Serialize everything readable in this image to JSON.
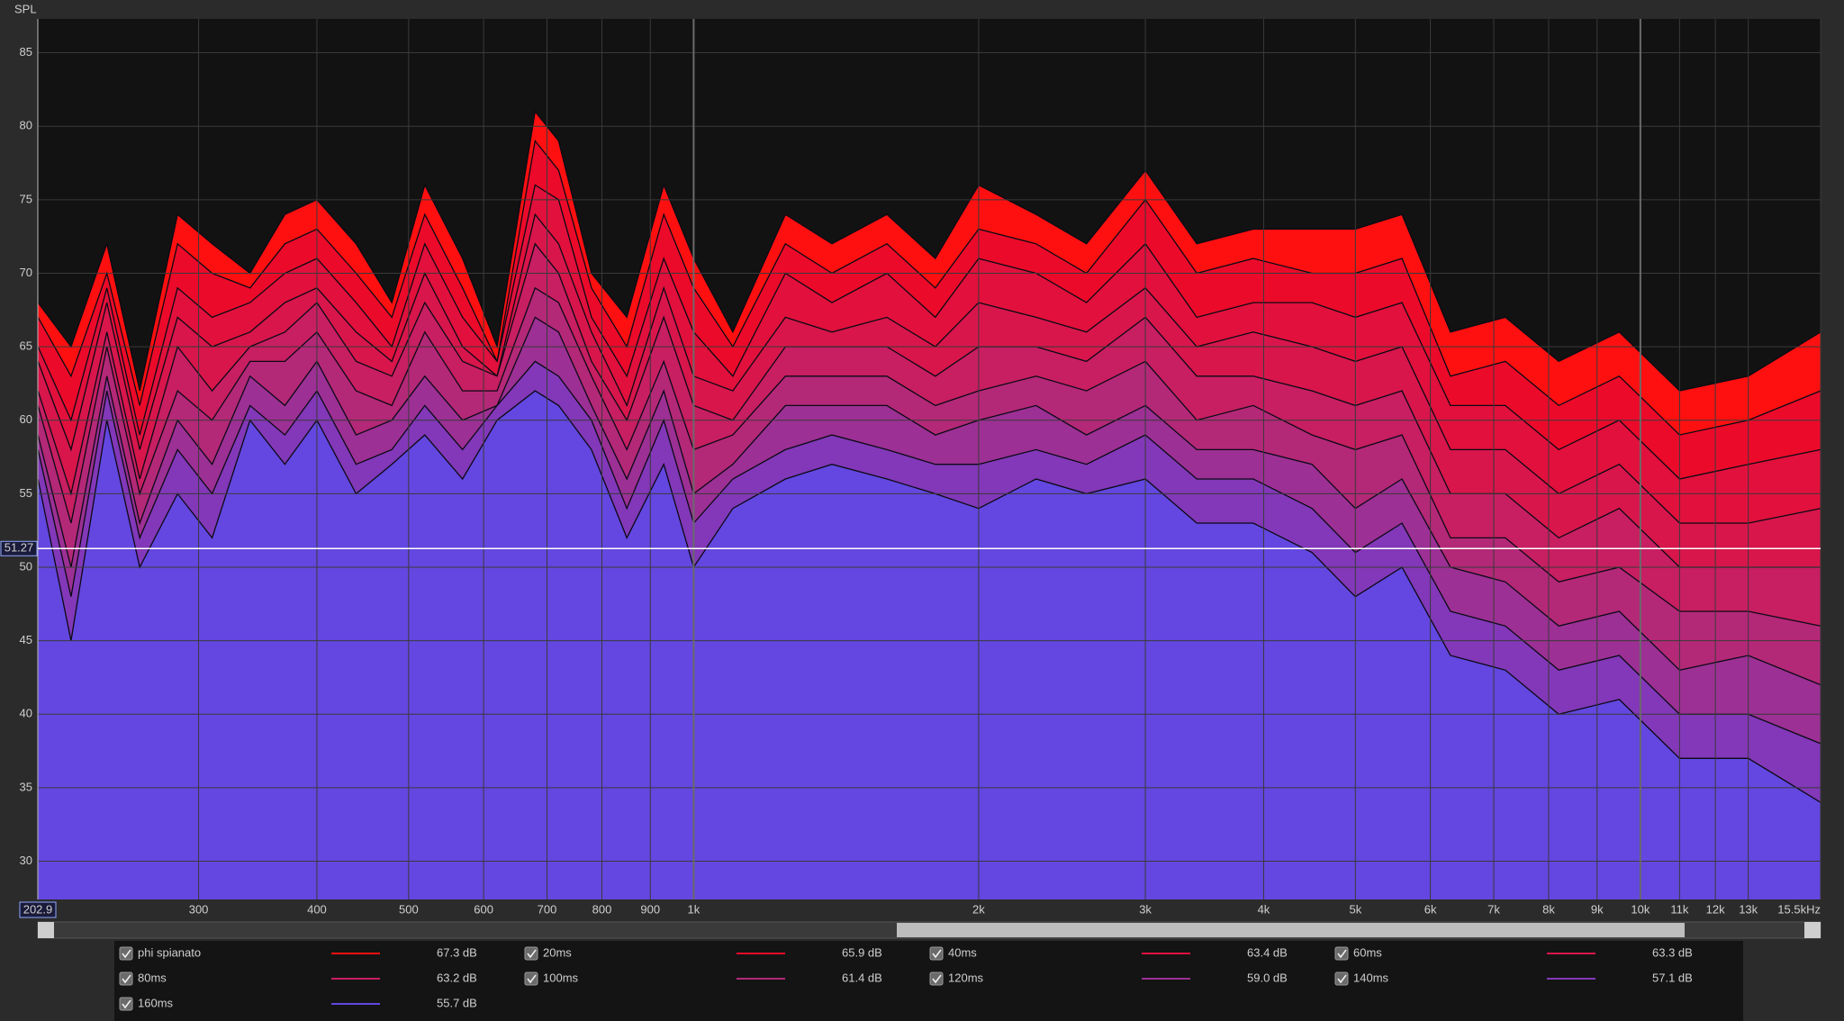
{
  "chart_data": {
    "type": "waterfall",
    "y_label": "SPL",
    "x": [
      203,
      220,
      240,
      260,
      285,
      310,
      340,
      370,
      400,
      440,
      480,
      520,
      570,
      620,
      680,
      720,
      780,
      850,
      930,
      1000,
      1100,
      1250,
      1400,
      1600,
      1800,
      2000,
      2300,
      2600,
      3000,
      3400,
      3900,
      4500,
      5000,
      5600,
      6300,
      7200,
      8200,
      9500,
      11000,
      13000,
      15500
    ],
    "xlim": [
      202.9,
      15500
    ],
    "ylim": [
      27.4,
      87.3
    ],
    "log_x": true,
    "grid": true,
    "xticks": [
      300,
      400,
      500,
      600,
      700,
      800,
      900,
      {
        "value": 1000,
        "label": "1k"
      },
      {
        "value": 2000,
        "label": "2k"
      },
      {
        "value": 3000,
        "label": "3k"
      },
      {
        "value": 4000,
        "label": "4k"
      },
      {
        "value": 5000,
        "label": "5k"
      },
      {
        "value": 6000,
        "label": "6k"
      },
      {
        "value": 7000,
        "label": "7k"
      },
      {
        "value": 8000,
        "label": "8k"
      },
      {
        "value": 9000,
        "label": "9k"
      },
      {
        "value": 10000,
        "label": "10k"
      },
      {
        "value": 15500,
        "label": "15.5kHz"
      }
    ],
    "xticks_minor": [
      {
        "value": 11000,
        "label": "11k"
      },
      {
        "value": 12000,
        "label": "12k"
      },
      {
        "value": 13000,
        "label": "13k"
      }
    ],
    "yticks": [
      30,
      35,
      40,
      45,
      50,
      55,
      60,
      65,
      70,
      75,
      80,
      85
    ],
    "cursor": {
      "x": 202.9,
      "y": 51.27
    },
    "series": [
      {
        "name": "phi spianato",
        "color": "#ff1010",
        "level": "67.3 dB",
        "values": [
          68,
          65,
          72,
          62,
          74,
          72,
          70,
          74,
          75,
          72,
          68,
          76,
          71,
          65,
          81,
          79,
          70,
          67,
          76,
          71,
          66,
          74,
          72,
          74,
          71,
          76,
          74,
          72,
          77,
          72,
          73,
          73,
          73,
          74,
          66,
          67,
          64,
          66,
          62,
          63,
          66
        ]
      },
      {
        "name": "20ms",
        "color": "#ec0a2a",
        "level": "65.9 dB",
        "values": [
          67,
          63,
          70,
          61,
          72,
          70,
          69,
          72,
          73,
          70,
          67,
          74,
          69,
          64,
          79,
          77,
          69,
          65,
          74,
          69,
          65,
          72,
          70,
          72,
          69,
          73,
          72,
          70,
          75,
          70,
          71,
          70,
          70,
          71,
          63,
          64,
          61,
          63,
          59,
          60,
          62
        ]
      },
      {
        "name": "40ms",
        "color": "#e2103c",
        "level": "63.4 dB",
        "values": [
          65,
          60,
          69,
          59,
          69,
          67,
          68,
          70,
          71,
          68,
          65,
          72,
          67,
          64,
          76,
          75,
          67,
          63,
          71,
          66,
          63,
          70,
          68,
          70,
          67,
          71,
          70,
          68,
          72,
          67,
          68,
          68,
          67,
          68,
          61,
          61,
          58,
          60,
          56,
          57,
          58
        ]
      },
      {
        "name": "60ms",
        "color": "#d8164c",
        "level": "63.3 dB",
        "values": [
          64,
          58,
          68,
          58,
          67,
          65,
          66,
          68,
          69,
          66,
          64,
          70,
          65,
          63,
          74,
          72,
          66,
          61,
          69,
          63,
          62,
          67,
          66,
          67,
          65,
          68,
          67,
          66,
          69,
          65,
          66,
          65,
          64,
          65,
          58,
          58,
          55,
          57,
          53,
          53,
          54
        ]
      },
      {
        "name": "80ms",
        "color": "#c81e62",
        "level": "63.2 dB",
        "values": [
          62,
          55,
          66,
          56,
          65,
          62,
          65,
          66,
          68,
          64,
          63,
          68,
          64,
          63,
          72,
          70,
          64,
          60,
          67,
          61,
          60,
          65,
          65,
          65,
          63,
          65,
          65,
          64,
          67,
          63,
          63,
          62,
          61,
          62,
          55,
          55,
          52,
          54,
          50,
          50,
          50
        ]
      },
      {
        "name": "100ms",
        "color": "#b42878",
        "level": "61.4 dB",
        "values": [
          61,
          53,
          65,
          55,
          62,
          60,
          64,
          64,
          66,
          62,
          61,
          66,
          62,
          62,
          69,
          68,
          63,
          58,
          64,
          58,
          59,
          63,
          63,
          63,
          61,
          62,
          63,
          62,
          64,
          60,
          61,
          59,
          58,
          59,
          52,
          52,
          49,
          50,
          47,
          47,
          46
        ]
      },
      {
        "name": "120ms",
        "color": "#9c3094",
        "level": "59.0 dB",
        "values": [
          59,
          50,
          63,
          53,
          60,
          57,
          63,
          61,
          64,
          59,
          60,
          63,
          60,
          61,
          67,
          66,
          61,
          56,
          62,
          55,
          57,
          61,
          61,
          61,
          59,
          60,
          61,
          59,
          61,
          58,
          58,
          57,
          54,
          56,
          50,
          49,
          46,
          47,
          43,
          44,
          42
        ]
      },
      {
        "name": "140ms",
        "color": "#8238b8",
        "level": "57.1 dB",
        "values": [
          58,
          48,
          62,
          52,
          58,
          55,
          61,
          59,
          62,
          57,
          58,
          61,
          58,
          61,
          64,
          63,
          60,
          54,
          60,
          53,
          56,
          58,
          59,
          58,
          57,
          57,
          58,
          57,
          59,
          56,
          56,
          54,
          51,
          53,
          47,
          46,
          43,
          44,
          40,
          40,
          38
        ]
      },
      {
        "name": "160ms",
        "color": "#6347e0",
        "level": "55.7 dB",
        "values": [
          56,
          45,
          60,
          50,
          55,
          52,
          60,
          57,
          60,
          55,
          57,
          59,
          56,
          60,
          62,
          61,
          58,
          52,
          57,
          50,
          54,
          56,
          57,
          56,
          55,
          54,
          56,
          55,
          56,
          53,
          53,
          51,
          48,
          50,
          44,
          43,
          40,
          41,
          37,
          37,
          34
        ]
      }
    ]
  }
}
